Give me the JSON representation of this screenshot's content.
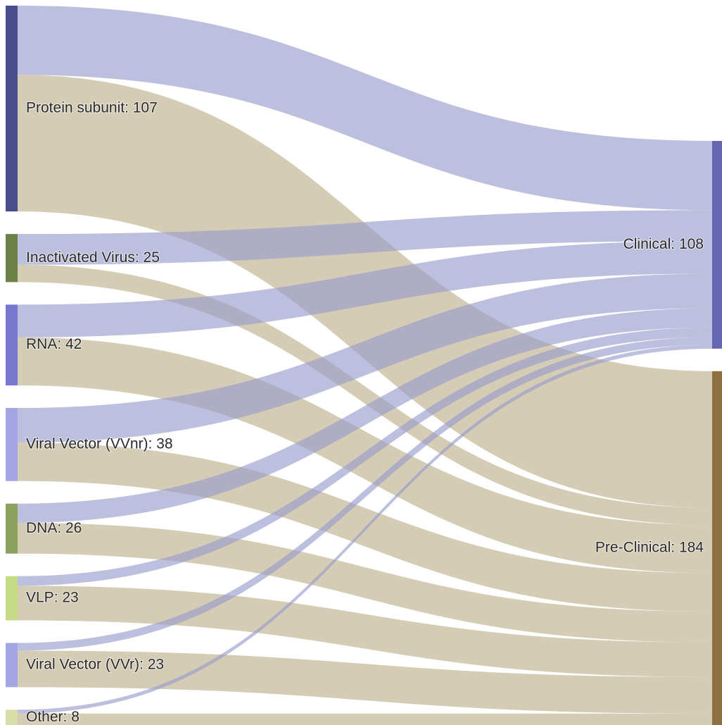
{
  "chart_data": {
    "type": "sankey",
    "nodes": [
      {
        "label": "Protein subunit: 107",
        "value": 107,
        "color": "#4b4e8c",
        "column": 0
      },
      {
        "label": "Inactivated Virus: 25",
        "value": 25,
        "color": "#6b8043",
        "column": 0
      },
      {
        "label": "RNA: 42",
        "value": 42,
        "color": "#7777cf",
        "column": 0
      },
      {
        "label": "Viral Vector (VVnr): 38",
        "value": 38,
        "color": "#a3a6e2",
        "column": 0
      },
      {
        "label": "DNA: 26",
        "value": 26,
        "color": "#8ca25e",
        "column": 0
      },
      {
        "label": "VLP: 23",
        "value": 23,
        "color": "#c6dc84",
        "column": 0
      },
      {
        "label": "Viral Vector (VVr): 23",
        "value": 23,
        "color": "#a3a6e2",
        "column": 0
      },
      {
        "label": "Other: 8",
        "value": 8,
        "color": "#d6dea6",
        "column": 0
      },
      {
        "label": "Clinical: 108",
        "value": 108,
        "color": "#6466b2",
        "column": 1
      },
      {
        "label": "Pre-Clinical: 184",
        "value": 184,
        "color": "#8c7040",
        "column": 1
      }
    ],
    "links": [
      {
        "source": 0,
        "target": 8,
        "value": 36,
        "color": "#9a9ccc"
      },
      {
        "source": 0,
        "target": 9,
        "value": 71,
        "color": "#bfb08f"
      },
      {
        "source": 1,
        "target": 8,
        "value": 16,
        "color": "#9a9ccc"
      },
      {
        "source": 1,
        "target": 9,
        "value": 9,
        "color": "#bfb08f"
      },
      {
        "source": 2,
        "target": 8,
        "value": 17,
        "color": "#9a9ccc"
      },
      {
        "source": 2,
        "target": 9,
        "value": 25,
        "color": "#bfb08f"
      },
      {
        "source": 3,
        "target": 8,
        "value": 18,
        "color": "#9a9ccc"
      },
      {
        "source": 3,
        "target": 9,
        "value": 20,
        "color": "#bfb08f"
      },
      {
        "source": 4,
        "target": 8,
        "value": 10,
        "color": "#9a9ccc"
      },
      {
        "source": 4,
        "target": 9,
        "value": 16,
        "color": "#bfb08f"
      },
      {
        "source": 5,
        "target": 8,
        "value": 5,
        "color": "#9a9ccc"
      },
      {
        "source": 5,
        "target": 9,
        "value": 18,
        "color": "#bfb08f"
      },
      {
        "source": 6,
        "target": 8,
        "value": 4,
        "color": "#9a9ccc"
      },
      {
        "source": 6,
        "target": 9,
        "value": 19,
        "color": "#bfb08f"
      },
      {
        "source": 7,
        "target": 8,
        "value": 2,
        "color": "#9a9ccc"
      },
      {
        "source": 7,
        "target": 9,
        "value": 6,
        "color": "#bfb08f"
      }
    ]
  }
}
